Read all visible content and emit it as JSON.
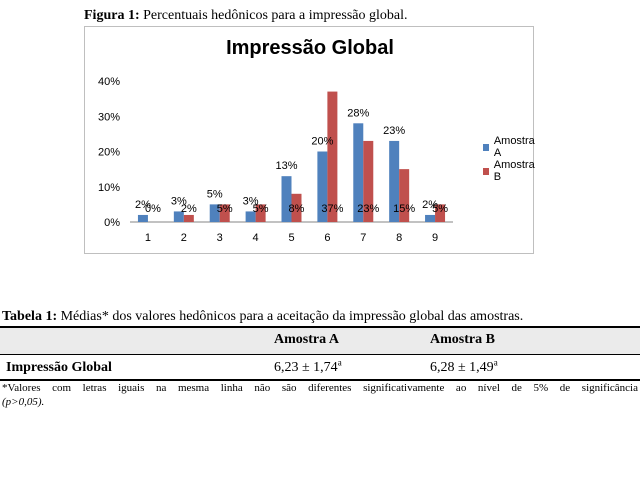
{
  "figure": {
    "label": "Figura 1:",
    "caption": "Percentuais hedônicos para a impressão global."
  },
  "chart_data": {
    "type": "bar",
    "title": "Impressão Global",
    "xlabel": "",
    "ylabel": "",
    "categories": [
      "1",
      "2",
      "3",
      "4",
      "5",
      "6",
      "7",
      "8",
      "9"
    ],
    "ylim": [
      0,
      40
    ],
    "yticks": [
      "0%",
      "10%",
      "20%",
      "30%",
      "40%"
    ],
    "grid": false,
    "legend_position": "right",
    "series": [
      {
        "name": "Amostra A",
        "color": "#4f81bd",
        "values": [
          2,
          3,
          5,
          3,
          13,
          20,
          28,
          23,
          2
        ],
        "labels": [
          "2%",
          "3%",
          "5%",
          "3%",
          "13%",
          "20%",
          "28%",
          "23%",
          "2%"
        ]
      },
      {
        "name": "Amostra B",
        "color": "#c0504d",
        "values": [
          0,
          2,
          5,
          5,
          8,
          37,
          23,
          15,
          5
        ],
        "labels": [
          "0%",
          "2%",
          "5%",
          "5%",
          "8%",
          "37%",
          "23%",
          "15%",
          "5%"
        ]
      }
    ]
  },
  "table": {
    "label": "Tabela 1:",
    "caption": "Médias* dos valores hedônicos para a aceitação da impressão global das amostras.",
    "headers": [
      "",
      "Amostra A",
      "Amostra B"
    ],
    "rows": [
      {
        "label": "Impressão Global",
        "a_value": "6,23 ± 1,74",
        "a_sup": "a",
        "b_value": "6,28 ± 1,49",
        "b_sup": "a"
      }
    ],
    "footnote": "*Valores com letras iguais na mesma linha não são diferentes significativamente ao nível de 5% de significância",
    "footnote_2": "(p>0,05)."
  }
}
